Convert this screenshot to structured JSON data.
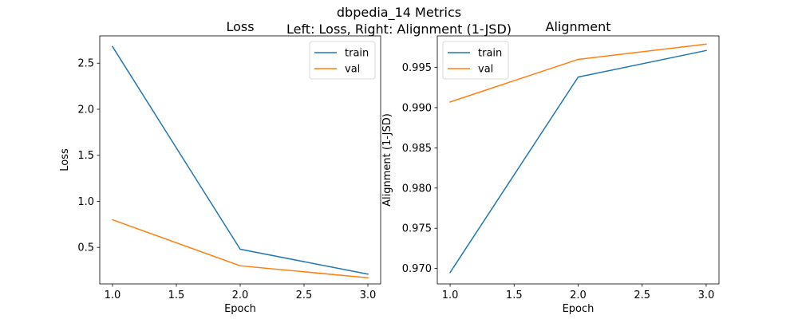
{
  "figure": {
    "suptitle_line1": "dbpedia_14 Metrics",
    "suptitle_line2": "Left: Loss, Right: Alignment (1-JSD)"
  },
  "chart_data": [
    {
      "type": "line",
      "title": "Loss",
      "xlabel": "Epoch",
      "ylabel": "Loss",
      "x": [
        1,
        2,
        3
      ],
      "series": [
        {
          "name": "train",
          "color": "#1f77b4",
          "values": [
            2.68,
            0.48,
            0.21
          ]
        },
        {
          "name": "val",
          "color": "#ff7f0e",
          "values": [
            0.8,
            0.3,
            0.17
          ]
        }
      ],
      "xlim": [
        0.9,
        3.1
      ],
      "ylim": [
        0.1035,
        2.7965
      ],
      "xticks": [
        1.0,
        1.5,
        2.0,
        2.5,
        3.0
      ],
      "xtick_labels": [
        "1.0",
        "1.5",
        "2.0",
        "2.5",
        "3.0"
      ],
      "yticks": [
        0.5,
        1.0,
        1.5,
        2.0,
        2.5
      ],
      "ytick_labels": [
        "0.5",
        "1.0",
        "1.5",
        "2.0",
        "2.5"
      ],
      "legend": "upper right",
      "grid": false
    },
    {
      "type": "line",
      "title": "Alignment",
      "xlabel": "Epoch",
      "ylabel": "Alignment (1-JSD)",
      "x": [
        1,
        2,
        3
      ],
      "series": [
        {
          "name": "train",
          "color": "#1f77b4",
          "values": [
            0.9695,
            0.9938,
            0.9971
          ]
        },
        {
          "name": "val",
          "color": "#ff7f0e",
          "values": [
            0.9907,
            0.996,
            0.9979
          ]
        }
      ],
      "xlim": [
        0.9,
        3.1
      ],
      "ylim": [
        0.96808,
        0.99892
      ],
      "xticks": [
        1.0,
        1.5,
        2.0,
        2.5,
        3.0
      ],
      "xtick_labels": [
        "1.0",
        "1.5",
        "2.0",
        "2.5",
        "3.0"
      ],
      "yticks": [
        0.97,
        0.975,
        0.98,
        0.985,
        0.99,
        0.995
      ],
      "ytick_labels": [
        "0.970",
        "0.975",
        "0.980",
        "0.985",
        "0.990",
        "0.995"
      ],
      "legend": "upper left",
      "grid": false
    }
  ]
}
